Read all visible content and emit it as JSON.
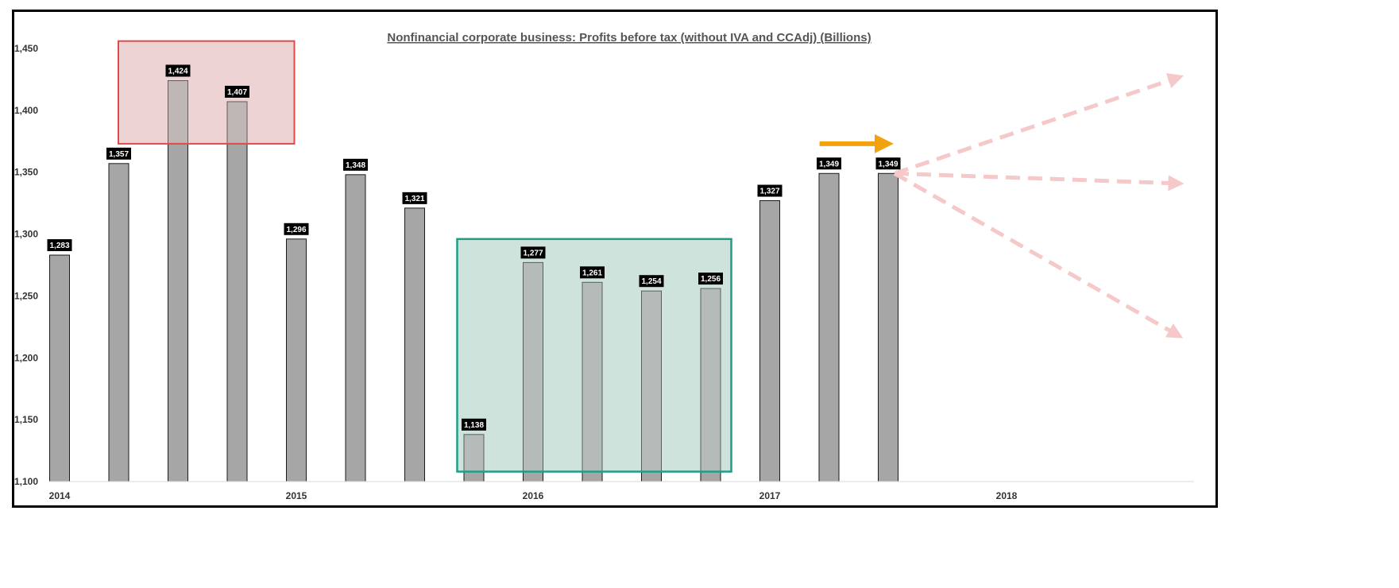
{
  "chart_data": {
    "type": "bar",
    "title": "Nonfinancial corporate business: Profits before tax (without IVA and CCAdj) (Billions)",
    "xlabel": "",
    "ylabel": "",
    "ylim": [
      1100,
      1450
    ],
    "yticks": [
      1100,
      1150,
      1200,
      1250,
      1300,
      1350,
      1400,
      1450
    ],
    "ytick_labels": [
      "1,100",
      "1,150",
      "1,200",
      "1,250",
      "1,300",
      "1,350",
      "1,400",
      "1,450"
    ],
    "xticks": [
      2014,
      2015,
      2016,
      2017,
      2018
    ],
    "xtick_labels": [
      "2014",
      "2015",
      "2016",
      "2017",
      "2018"
    ],
    "x": [
      2014.0,
      2014.25,
      2014.5,
      2014.75,
      2015.0,
      2015.25,
      2015.5,
      2015.75,
      2016.0,
      2016.25,
      2016.5,
      2016.75,
      2017.0,
      2017.25,
      2017.5
    ],
    "values": [
      1283,
      1357,
      1424,
      1407,
      1296,
      1348,
      1321,
      1138,
      1277,
      1261,
      1254,
      1256,
      1327,
      1349,
      1349
    ],
    "value_labels": [
      "1,283",
      "1,357",
      "1,424",
      "1,407",
      "1,296",
      "1,348",
      "1,321",
      "1,138",
      "1,277",
      "1,261",
      "1,254",
      "1,256",
      "1,327",
      "1,349",
      "1,349"
    ],
    "grid": false,
    "legend": "none",
    "colors": {
      "bar": "#a6a6a6",
      "bar_edge": "#1a1a1a",
      "label_bg": "#000000",
      "label_text": "#ffffff",
      "red_box_fill": "#efd3d4",
      "red_box_edge": "#e04a4a",
      "green_box_fill": "#cfe3de",
      "green_box_edge": "#1f9e85",
      "arrow": "#f2a20c",
      "forecast_arrows": "#f5c9c9"
    },
    "annotations": {
      "highlight_high": {
        "x_range": [
          2014.5,
          2014.75
        ],
        "y_range": [
          1373,
          1456
        ]
      },
      "highlight_low": {
        "x_range": [
          2015.75,
          2016.75
        ],
        "y_range": [
          1108,
          1296
        ]
      },
      "trend_arrow": {
        "x_range": [
          2017.2,
          2017.55
        ],
        "y": 1373
      },
      "forecast_arrows": [
        {
          "from": [
            2017.5,
            1349
          ],
          "to": [
            2018.75,
            1426
          ]
        },
        {
          "from": [
            2017.5,
            1349
          ],
          "to": [
            2018.75,
            1341
          ]
        },
        {
          "from": [
            2017.5,
            1349
          ],
          "to": [
            2018.75,
            1219
          ]
        }
      ]
    }
  }
}
